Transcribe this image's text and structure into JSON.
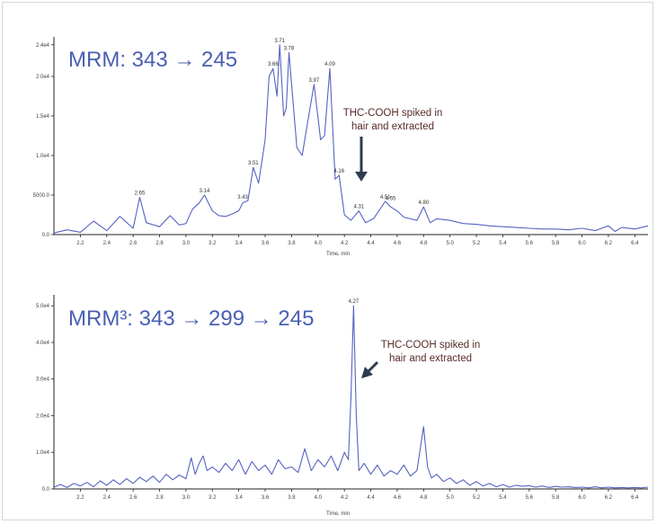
{
  "colors": {
    "trace": "#5563c0",
    "title": "#4a5fb3",
    "annotation": "#5a2a2a",
    "arrow": "#2f3b4f",
    "axis": "#222222"
  },
  "chart_data": [
    {
      "type": "line",
      "title": "MRM: 343 → 245",
      "xlabel": "Time, min",
      "ylabel": "",
      "xlim": [
        2.0,
        6.5
      ],
      "ylim": [
        0,
        25000
      ],
      "x_ticks": [
        "2.2",
        "2.4",
        "2.6",
        "2.8",
        "3.0",
        "3.2",
        "3.4",
        "3.6",
        "3.8",
        "4.0",
        "4.2",
        "4.4",
        "4.6",
        "4.8",
        "5.0",
        "5.2",
        "5.4",
        "5.6",
        "5.8",
        "6.0",
        "6.2",
        "6.4"
      ],
      "y_ticks": [
        {
          "value": 0,
          "label": "0.0"
        },
        {
          "value": 5000,
          "label": "5000.0"
        },
        {
          "value": 10000,
          "label": "1.0e4"
        },
        {
          "value": 15000,
          "label": "1.5e4"
        },
        {
          "value": 20000,
          "label": "2.0e4"
        },
        {
          "value": 24000,
          "label": "2.4e4"
        }
      ],
      "peak_labels": [
        {
          "x": 2.65,
          "label": "2.65"
        },
        {
          "x": 3.14,
          "label": "3.14"
        },
        {
          "x": 3.43,
          "label": "3.43"
        },
        {
          "x": 3.51,
          "label": "3.51"
        },
        {
          "x": 3.66,
          "label": "3.66"
        },
        {
          "x": 3.71,
          "label": "3.71"
        },
        {
          "x": 3.78,
          "label": "3.78"
        },
        {
          "x": 3.97,
          "label": "3.97"
        },
        {
          "x": 4.09,
          "label": "4.09"
        },
        {
          "x": 4.16,
          "label": "4.16"
        },
        {
          "x": 4.31,
          "label": "4.31"
        },
        {
          "x": 4.51,
          "label": "4.51"
        },
        {
          "x": 4.55,
          "label": "4.55"
        },
        {
          "x": 4.8,
          "label": "4.80"
        }
      ],
      "series": [
        {
          "x": [
            2.0,
            2.1,
            2.2,
            2.3,
            2.4,
            2.5,
            2.6,
            2.65,
            2.7,
            2.8,
            2.88,
            2.95,
            3.0,
            3.05,
            3.1,
            3.14,
            3.2,
            3.25,
            3.3,
            3.35,
            3.4,
            3.43,
            3.47,
            3.51,
            3.55,
            3.6,
            3.63,
            3.66,
            3.69,
            3.71,
            3.74,
            3.76,
            3.78,
            3.81,
            3.84,
            3.88,
            3.92,
            3.97,
            4.02,
            4.05,
            4.09,
            4.13,
            4.16,
            4.2,
            4.25,
            4.31,
            4.36,
            4.42,
            4.47,
            4.51,
            4.55,
            4.6,
            4.65,
            4.7,
            4.75,
            4.8,
            4.85,
            4.9,
            5.0,
            5.1,
            5.2,
            5.3,
            5.4,
            5.5,
            5.6,
            5.7,
            5.8,
            5.9,
            6.0,
            6.1,
            6.2,
            6.25,
            6.3,
            6.4,
            6.5
          ],
          "y": [
            200,
            600,
            300,
            1700,
            500,
            2300,
            800,
            4700,
            1500,
            1000,
            2400,
            1200,
            1400,
            3200,
            4000,
            5000,
            3000,
            2400,
            2300,
            2600,
            3000,
            4000,
            4300,
            8500,
            6500,
            12000,
            20000,
            21000,
            17500,
            24000,
            15000,
            16000,
            23000,
            17000,
            11000,
            10000,
            14000,
            19000,
            12000,
            12500,
            21000,
            7000,
            7500,
            2500,
            1800,
            3000,
            1500,
            2000,
            3200,
            4200,
            3500,
            3000,
            2200,
            2000,
            1800,
            3500,
            1500,
            2000,
            1800,
            1400,
            1300,
            1100,
            1000,
            900,
            800,
            700,
            700,
            600,
            800,
            500,
            1100,
            400,
            900,
            700,
            1100
          ]
        }
      ]
    },
    {
      "type": "line",
      "title": "MRM³: 343 → 299 → 245",
      "xlabel": "Time, min",
      "ylabel": "",
      "xlim": [
        2.0,
        6.5
      ],
      "ylim": [
        0,
        53000
      ],
      "x_ticks": [
        "2.2",
        "2.4",
        "2.6",
        "2.8",
        "3.0",
        "3.2",
        "3.4",
        "3.6",
        "3.8",
        "4.0",
        "4.2",
        "4.4",
        "4.6",
        "4.8",
        "5.0",
        "5.2",
        "5.4",
        "5.6",
        "5.8",
        "6.0",
        "6.2",
        "6.4"
      ],
      "y_ticks": [
        {
          "value": 0,
          "label": "0.0"
        },
        {
          "value": 10000,
          "label": "1.0e4"
        },
        {
          "value": 20000,
          "label": "2.0e4"
        },
        {
          "value": 30000,
          "label": "3.0e4"
        },
        {
          "value": 40000,
          "label": "4.0e4"
        },
        {
          "value": 50000,
          "label": "5.0e4"
        }
      ],
      "peak_labels": [
        {
          "x": 4.27,
          "label": "4.27"
        }
      ],
      "series": [
        {
          "x": [
            2.0,
            2.05,
            2.1,
            2.15,
            2.2,
            2.25,
            2.3,
            2.35,
            2.4,
            2.45,
            2.5,
            2.55,
            2.6,
            2.65,
            2.7,
            2.75,
            2.8,
            2.85,
            2.9,
            2.95,
            3.0,
            3.04,
            3.07,
            3.1,
            3.13,
            3.16,
            3.2,
            3.25,
            3.3,
            3.35,
            3.4,
            3.45,
            3.5,
            3.55,
            3.6,
            3.65,
            3.7,
            3.75,
            3.8,
            3.85,
            3.9,
            3.95,
            4.0,
            4.05,
            4.1,
            4.15,
            4.2,
            4.23,
            4.25,
            4.27,
            4.29,
            4.31,
            4.35,
            4.4,
            4.45,
            4.5,
            4.55,
            4.6,
            4.65,
            4.7,
            4.75,
            4.8,
            4.83,
            4.86,
            4.9,
            4.95,
            5.0,
            5.05,
            5.1,
            5.15,
            5.2,
            5.25,
            5.3,
            5.35,
            5.4,
            5.45,
            5.5,
            5.55,
            5.6,
            5.65,
            5.7,
            5.75,
            5.8,
            5.85,
            5.9,
            5.95,
            6.0,
            6.05,
            6.1,
            6.15,
            6.2,
            6.25,
            6.3,
            6.35,
            6.4,
            6.45,
            6.5
          ],
          "y": [
            500,
            1200,
            400,
            1500,
            800,
            1800,
            600,
            2200,
            1000,
            2500,
            1200,
            2800,
            1500,
            3200,
            2000,
            3500,
            1800,
            4000,
            2500,
            3800,
            2800,
            8500,
            4000,
            7000,
            9000,
            5000,
            6000,
            4500,
            7000,
            5000,
            8000,
            4000,
            7500,
            5000,
            6500,
            4000,
            8000,
            5500,
            6000,
            4500,
            11000,
            5000,
            8000,
            6000,
            9000,
            5000,
            10000,
            8000,
            25000,
            50000,
            20000,
            5000,
            7000,
            4000,
            6500,
            3500,
            5000,
            4000,
            6500,
            3500,
            5000,
            17000,
            6000,
            3000,
            4000,
            2000,
            3000,
            1500,
            2500,
            1000,
            2000,
            800,
            1500,
            600,
            1200,
            500,
            1000,
            700,
            900,
            500,
            800,
            400,
            700,
            500,
            600,
            400,
            500,
            300,
            600,
            300,
            500,
            300,
            400,
            300,
            400,
            300,
            500
          ]
        }
      ]
    }
  ],
  "annotations": [
    {
      "line1": "THC-COOH spiked in",
      "line2": "hair and extracted"
    },
    {
      "line1": "THC-COOH spiked in",
      "line2": "hair and extracted"
    }
  ]
}
